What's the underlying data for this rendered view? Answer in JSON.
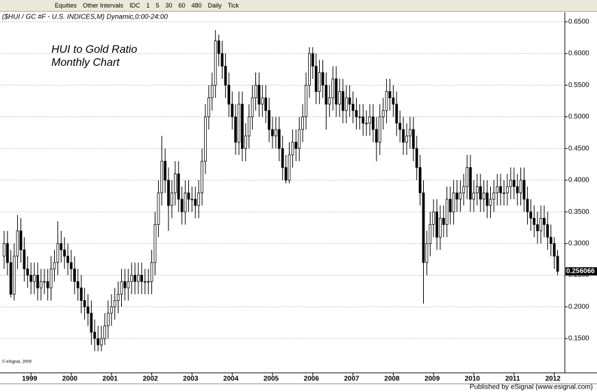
{
  "toolbar": {
    "items": [
      "Equities",
      "Other Intervals",
      "IDC",
      "1",
      "5",
      "30",
      "60",
      "480",
      "Daily",
      "Tick"
    ]
  },
  "chart_data": {
    "type": "candlestick",
    "symbol_header": "($HUI / GC #F - U.S. INDICES,M) Dynamic,0:00-24:00",
    "title": "HUI to Gold Ratio",
    "subtitle": "Monthly Chart",
    "copyright": "© eSignal, 2009",
    "footer": "Published by eSignal (www.esignal.com)",
    "categories": [
      null,
      null,
      null,
      null,
      null,
      null,
      null,
      null,
      "1999",
      null,
      null,
      null,
      null,
      null,
      null,
      null,
      null,
      null,
      null,
      null,
      "2000",
      null,
      null,
      null,
      null,
      null,
      null,
      null,
      null,
      null,
      null,
      null,
      "2001",
      null,
      null,
      null,
      null,
      null,
      null,
      null,
      null,
      null,
      null,
      null,
      "2002",
      null,
      null,
      null,
      null,
      null,
      null,
      null,
      null,
      null,
      null,
      null,
      "2003",
      null,
      null,
      null,
      null,
      null,
      null,
      null,
      null,
      null,
      null,
      null,
      "2004",
      null,
      null,
      null,
      null,
      null,
      null,
      null,
      null,
      null,
      null,
      null,
      "2005",
      null,
      null,
      null,
      null,
      null,
      null,
      null,
      null,
      null,
      null,
      null,
      "2006",
      null,
      null,
      null,
      null,
      null,
      null,
      null,
      null,
      null,
      null,
      null,
      "2007",
      null,
      null,
      null,
      null,
      null,
      null,
      null,
      null,
      null,
      null,
      null,
      "2008",
      null,
      null,
      null,
      null,
      null,
      null,
      null,
      null,
      null,
      null,
      null,
      "2009",
      null,
      null,
      null,
      null,
      null,
      null,
      null,
      null,
      null,
      null,
      null,
      "2010",
      null,
      null,
      null,
      null,
      null,
      null,
      null,
      null,
      null,
      null,
      null,
      "2011",
      null,
      null,
      null,
      null,
      null,
      null,
      null,
      null,
      null,
      null,
      null,
      "2012",
      null
    ],
    "open": [
      0.28,
      0.3,
      0.27,
      0.22,
      0.28,
      0.32,
      0.29,
      0.26,
      0.25,
      0.24,
      0.25,
      0.23,
      0.24,
      0.24,
      0.23,
      0.26,
      0.27,
      0.3,
      0.29,
      0.28,
      0.27,
      0.26,
      0.24,
      0.23,
      0.21,
      0.2,
      0.19,
      0.16,
      0.15,
      0.14,
      0.15,
      0.17,
      0.19,
      0.2,
      0.21,
      0.22,
      0.24,
      0.23,
      0.24,
      0.25,
      0.24,
      0.25,
      0.24,
      0.24,
      0.24,
      0.27,
      0.33,
      0.38,
      0.43,
      0.4,
      0.36,
      0.38,
      0.41,
      0.37,
      0.35,
      0.38,
      0.37,
      0.37,
      0.36,
      0.38,
      0.43,
      0.5,
      0.53,
      0.55,
      0.62,
      0.6,
      0.58,
      0.55,
      0.52,
      0.5,
      0.46,
      0.52,
      0.45,
      0.47,
      0.5,
      0.53,
      0.55,
      0.52,
      0.53,
      0.51,
      0.48,
      0.47,
      0.48,
      0.45,
      0.42,
      0.4,
      0.44,
      0.46,
      0.45,
      0.48,
      0.5,
      0.55,
      0.6,
      0.58,
      0.54,
      0.57,
      0.55,
      0.52,
      0.53,
      0.56,
      0.52,
      0.54,
      0.51,
      0.53,
      0.52,
      0.51,
      0.5,
      0.5,
      0.49,
      0.49,
      0.5,
      0.48,
      0.46,
      0.5,
      0.51,
      0.54,
      0.53,
      0.52,
      0.49,
      0.48,
      0.46,
      0.47,
      0.48,
      0.45,
      0.42,
      0.38,
      0.27,
      0.3,
      0.33,
      0.35,
      0.31,
      0.34,
      0.33,
      0.37,
      0.35,
      0.38,
      0.37,
      0.38,
      0.39,
      0.42,
      0.37,
      0.38,
      0.39,
      0.37,
      0.38,
      0.36,
      0.37,
      0.38,
      0.39,
      0.38,
      0.38,
      0.39,
      0.4,
      0.39,
      0.38,
      0.4,
      0.37,
      0.35,
      0.34,
      0.33,
      0.32,
      0.34,
      0.33,
      0.31,
      0.3,
      0.28
    ],
    "high": [
      0.32,
      0.32,
      0.29,
      0.3,
      0.345,
      0.34,
      0.31,
      0.28,
      0.27,
      0.27,
      0.27,
      0.26,
      0.26,
      0.26,
      0.28,
      0.29,
      0.335,
      0.32,
      0.31,
      0.3,
      0.29,
      0.28,
      0.26,
      0.25,
      0.23,
      0.22,
      0.21,
      0.18,
      0.17,
      0.17,
      0.19,
      0.21,
      0.22,
      0.23,
      0.24,
      0.26,
      0.26,
      0.26,
      0.27,
      0.27,
      0.27,
      0.27,
      0.26,
      0.26,
      0.29,
      0.35,
      0.4,
      0.47,
      0.45,
      0.42,
      0.4,
      0.43,
      0.43,
      0.39,
      0.4,
      0.4,
      0.39,
      0.39,
      0.4,
      0.45,
      0.52,
      0.55,
      0.57,
      0.637,
      0.63,
      0.62,
      0.6,
      0.57,
      0.54,
      0.52,
      0.54,
      0.54,
      0.49,
      0.52,
      0.55,
      0.57,
      0.57,
      0.55,
      0.55,
      0.53,
      0.5,
      0.5,
      0.5,
      0.47,
      0.44,
      0.46,
      0.48,
      0.48,
      0.5,
      0.52,
      0.57,
      0.61,
      0.61,
      0.6,
      0.59,
      0.59,
      0.57,
      0.55,
      0.58,
      0.58,
      0.56,
      0.56,
      0.55,
      0.55,
      0.54,
      0.53,
      0.52,
      0.52,
      0.51,
      0.52,
      0.52,
      0.5,
      0.52,
      0.53,
      0.56,
      0.56,
      0.55,
      0.54,
      0.51,
      0.5,
      0.49,
      0.5,
      0.5,
      0.47,
      0.44,
      0.4,
      0.32,
      0.35,
      0.37,
      0.37,
      0.36,
      0.36,
      0.39,
      0.39,
      0.4,
      0.4,
      0.4,
      0.41,
      0.44,
      0.44,
      0.4,
      0.41,
      0.41,
      0.4,
      0.4,
      0.39,
      0.4,
      0.41,
      0.41,
      0.4,
      0.41,
      0.42,
      0.42,
      0.41,
      0.42,
      0.42,
      0.39,
      0.37,
      0.36,
      0.35,
      0.36,
      0.36,
      0.35,
      0.33,
      0.31,
      0.29
    ],
    "low": [
      0.26,
      0.25,
      0.215,
      0.21,
      0.26,
      0.27,
      0.24,
      0.23,
      0.22,
      0.22,
      0.21,
      0.21,
      0.22,
      0.21,
      0.21,
      0.24,
      0.25,
      0.27,
      0.26,
      0.25,
      0.24,
      0.22,
      0.21,
      0.19,
      0.18,
      0.17,
      0.14,
      0.13,
      0.13,
      0.13,
      0.14,
      0.15,
      0.17,
      0.18,
      0.19,
      0.2,
      0.21,
      0.21,
      0.22,
      0.22,
      0.22,
      0.22,
      0.22,
      0.22,
      0.22,
      0.25,
      0.31,
      0.36,
      0.38,
      0.32,
      0.34,
      0.36,
      0.35,
      0.33,
      0.33,
      0.35,
      0.35,
      0.34,
      0.34,
      0.36,
      0.41,
      0.48,
      0.51,
      0.53,
      0.58,
      0.56,
      0.53,
      0.5,
      0.48,
      0.44,
      0.44,
      0.43,
      0.43,
      0.45,
      0.48,
      0.51,
      0.5,
      0.5,
      0.49,
      0.46,
      0.45,
      0.45,
      0.43,
      0.4,
      0.395,
      0.395,
      0.42,
      0.43,
      0.43,
      0.46,
      0.48,
      0.53,
      0.56,
      0.52,
      0.52,
      0.53,
      0.48,
      0.5,
      0.51,
      0.5,
      0.5,
      0.49,
      0.49,
      0.5,
      0.49,
      0.48,
      0.48,
      0.47,
      0.47,
      0.47,
      0.46,
      0.43,
      0.44,
      0.48,
      0.49,
      0.51,
      0.5,
      0.47,
      0.46,
      0.44,
      0.44,
      0.45,
      0.43,
      0.4,
      0.36,
      0.205,
      0.25,
      0.28,
      0.31,
      0.29,
      0.29,
      0.31,
      0.31,
      0.33,
      0.33,
      0.35,
      0.35,
      0.36,
      0.37,
      0.35,
      0.35,
      0.36,
      0.35,
      0.35,
      0.34,
      0.34,
      0.35,
      0.36,
      0.36,
      0.36,
      0.36,
      0.37,
      0.37,
      0.36,
      0.36,
      0.35,
      0.33,
      0.32,
      0.31,
      0.3,
      0.3,
      0.31,
      0.29,
      0.28,
      0.26,
      0.25
    ],
    "close": [
      0.3,
      0.27,
      0.22,
      0.28,
      0.32,
      0.29,
      0.26,
      0.25,
      0.24,
      0.25,
      0.23,
      0.24,
      0.24,
      0.23,
      0.26,
      0.27,
      0.3,
      0.29,
      0.28,
      0.27,
      0.26,
      0.24,
      0.23,
      0.21,
      0.2,
      0.19,
      0.16,
      0.15,
      0.14,
      0.15,
      0.17,
      0.19,
      0.2,
      0.21,
      0.22,
      0.24,
      0.23,
      0.24,
      0.25,
      0.24,
      0.25,
      0.24,
      0.24,
      0.24,
      0.27,
      0.33,
      0.38,
      0.43,
      0.4,
      0.36,
      0.38,
      0.41,
      0.37,
      0.35,
      0.38,
      0.37,
      0.37,
      0.36,
      0.38,
      0.43,
      0.5,
      0.53,
      0.55,
      0.62,
      0.6,
      0.58,
      0.55,
      0.52,
      0.5,
      0.46,
      0.52,
      0.45,
      0.47,
      0.5,
      0.53,
      0.55,
      0.52,
      0.53,
      0.51,
      0.48,
      0.47,
      0.48,
      0.45,
      0.42,
      0.4,
      0.44,
      0.46,
      0.45,
      0.48,
      0.5,
      0.55,
      0.6,
      0.58,
      0.54,
      0.57,
      0.55,
      0.52,
      0.53,
      0.56,
      0.52,
      0.54,
      0.51,
      0.53,
      0.52,
      0.51,
      0.5,
      0.5,
      0.49,
      0.49,
      0.5,
      0.48,
      0.46,
      0.5,
      0.51,
      0.54,
      0.53,
      0.52,
      0.49,
      0.48,
      0.46,
      0.47,
      0.48,
      0.45,
      0.42,
      0.38,
      0.27,
      0.3,
      0.33,
      0.35,
      0.31,
      0.34,
      0.33,
      0.37,
      0.35,
      0.38,
      0.37,
      0.38,
      0.39,
      0.42,
      0.37,
      0.38,
      0.39,
      0.37,
      0.38,
      0.36,
      0.37,
      0.38,
      0.39,
      0.38,
      0.38,
      0.39,
      0.4,
      0.39,
      0.38,
      0.4,
      0.37,
      0.35,
      0.34,
      0.33,
      0.32,
      0.34,
      0.33,
      0.31,
      0.3,
      0.28,
      0.256066
    ],
    "ylim": [
      0.097,
      0.665
    ],
    "yticks": [
      {
        "value": 0.15,
        "label": "0.1500"
      },
      {
        "value": 0.2,
        "label": "0.2000"
      },
      {
        "value": 0.25,
        "label": "0.2500"
      },
      {
        "value": 0.3,
        "label": "0.3000"
      },
      {
        "value": 0.35,
        "label": "0.3500"
      },
      {
        "value": 0.4,
        "label": "0.4000"
      },
      {
        "value": 0.45,
        "label": "0.4500"
      },
      {
        "value": 0.5,
        "label": "0.5000"
      },
      {
        "value": 0.55,
        "label": "0.5500"
      },
      {
        "value": 0.6,
        "label": "0.6000"
      },
      {
        "value": 0.65,
        "label": "0.6500"
      }
    ],
    "grid": true,
    "up_color": "#ffffff",
    "down_color": "#000000"
  }
}
